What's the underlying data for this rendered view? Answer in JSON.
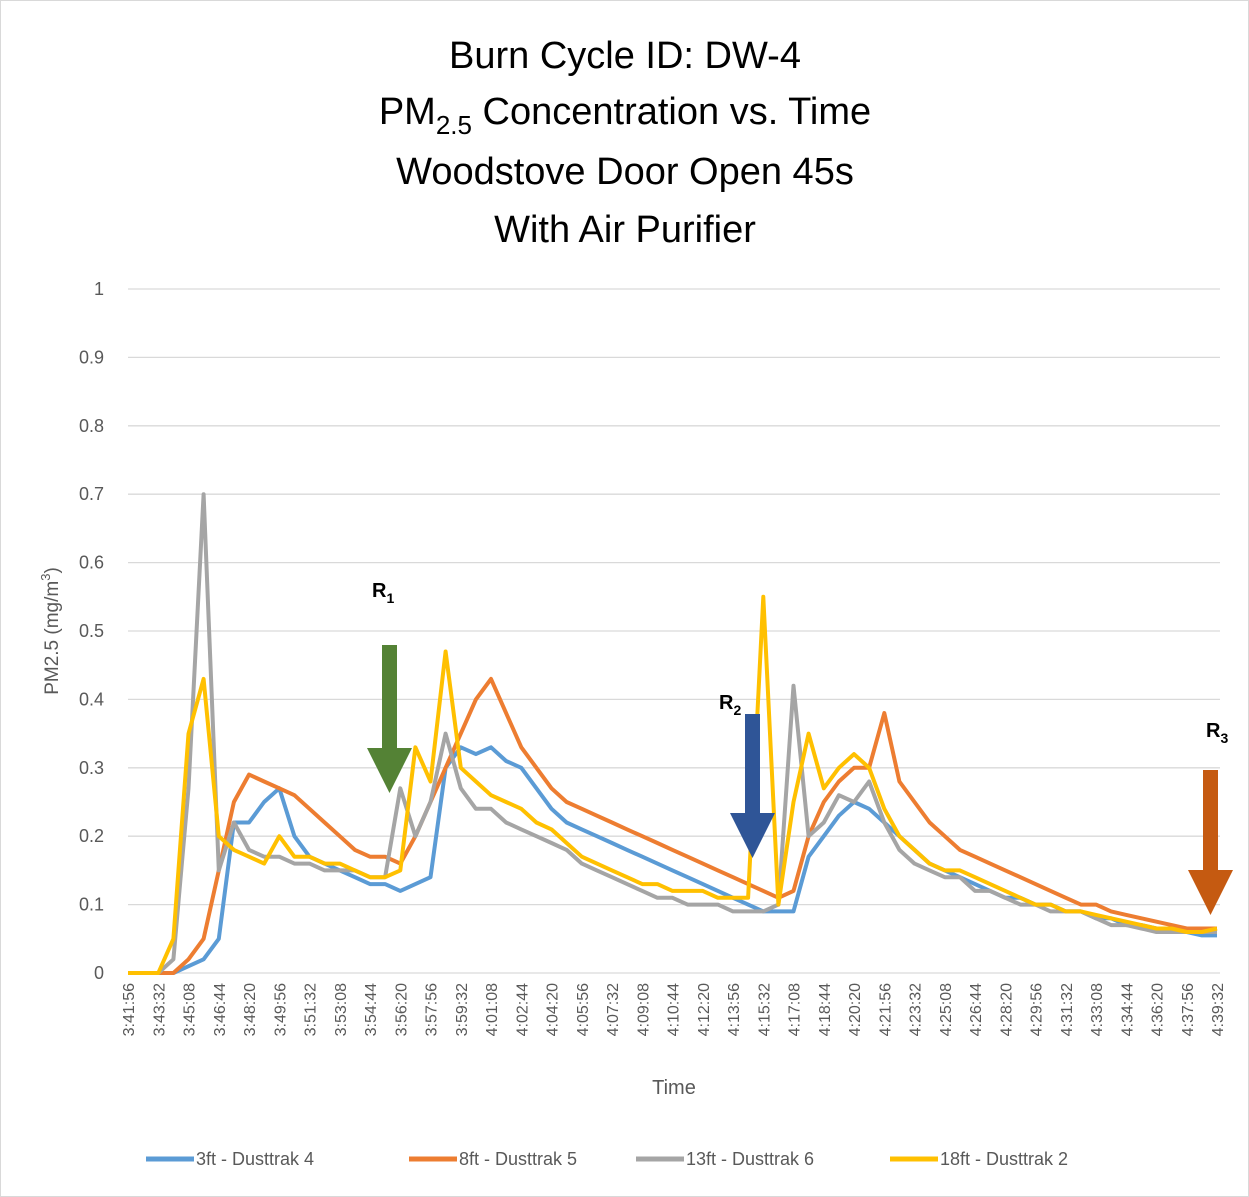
{
  "chart_data": {
    "type": "line",
    "title_lines": [
      "Burn Cycle ID: DW-4",
      [
        "PM",
        "2.5",
        " Concentration vs. Time"
      ],
      "Woodstove Door Open 45s",
      "With Air Purifier"
    ],
    "x_label": "Time",
    "y_label": [
      "PM2.5 (mg/m",
      "3",
      ")"
    ],
    "annotations": [
      {
        "label": "R",
        "subscript": "1"
      },
      {
        "label": "R",
        "subscript": "2"
      },
      {
        "label": "R",
        "subscript": "3"
      }
    ],
    "categories": [
      "3:41:56",
      null,
      "3:43:32",
      null,
      "3:45:08",
      null,
      "3:46:44",
      null,
      "3:48:20",
      null,
      "3:49:56",
      null,
      "3:51:32",
      null,
      "3:53:08",
      null,
      "3:54:44",
      null,
      "3:56:20",
      null,
      "3:57:56",
      null,
      "3:59:32",
      null,
      "4:01:08",
      null,
      "4:02:44",
      null,
      "4:04:20",
      null,
      "4:05:56",
      null,
      "4:07:32",
      null,
      "4:09:08",
      null,
      "4:10:44",
      null,
      "4:12:20",
      null,
      "4:13:56",
      null,
      "4:15:32",
      null,
      "4:17:08",
      null,
      "4:18:44",
      null,
      "4:20:20",
      null,
      "4:21:56",
      null,
      "4:23:32",
      null,
      "4:25:08",
      null,
      "4:26:44",
      null,
      "4:28:20",
      null,
      "4:29:56",
      null,
      "4:31:32",
      null,
      "4:33:08",
      null,
      "4:34:44",
      null,
      "4:36:20",
      null,
      "4:37:56",
      null,
      "4:39:32"
    ],
    "series": [
      {
        "name": "3ft - Dusttrak 4",
        "color": "#5b9bd5",
        "values": [
          0,
          0,
          0,
          0,
          0.01,
          0.02,
          0.05,
          0.22,
          0.22,
          0.25,
          0.27,
          0.2,
          0.17,
          0.16,
          0.15,
          0.14,
          0.13,
          0.13,
          0.12,
          0.13,
          0.14,
          0.3,
          0.33,
          0.32,
          0.33,
          0.31,
          0.3,
          0.27,
          0.24,
          0.22,
          0.21,
          0.2,
          0.19,
          0.18,
          0.17,
          0.16,
          0.15,
          0.14,
          0.13,
          0.12,
          0.11,
          0.1,
          0.09,
          0.09,
          0.09,
          0.17,
          0.2,
          0.23,
          0.25,
          0.24,
          0.22,
          0.2,
          0.18,
          0.16,
          0.15,
          0.14,
          0.13,
          0.12,
          0.11,
          0.11,
          0.1,
          0.1,
          0.09,
          0.09,
          0.08,
          0.08,
          0.07,
          0.07,
          0.065,
          0.06,
          0.06,
          0.055,
          0.055
        ]
      },
      {
        "name": "8ft - Dusttrak 5",
        "color": "#ed7d31",
        "values": [
          0,
          0,
          0,
          0,
          0.02,
          0.05,
          0.15,
          0.25,
          0.29,
          0.28,
          0.27,
          0.26,
          0.24,
          0.22,
          0.2,
          0.18,
          0.17,
          0.17,
          0.16,
          0.2,
          0.25,
          0.3,
          0.35,
          0.4,
          0.43,
          0.38,
          0.33,
          0.3,
          0.27,
          0.25,
          0.24,
          0.23,
          0.22,
          0.21,
          0.2,
          0.19,
          0.18,
          0.17,
          0.16,
          0.15,
          0.14,
          0.13,
          0.12,
          0.11,
          0.12,
          0.2,
          0.25,
          0.28,
          0.3,
          0.3,
          0.38,
          0.28,
          0.25,
          0.22,
          0.2,
          0.18,
          0.17,
          0.16,
          0.15,
          0.14,
          0.13,
          0.12,
          0.11,
          0.1,
          0.1,
          0.09,
          0.085,
          0.08,
          0.075,
          0.07,
          0.065,
          0.065,
          0.065
        ]
      },
      {
        "name": "13ft - Dusttrak 6",
        "color": "#a5a5a5",
        "values": [
          0,
          0,
          0,
          0.02,
          0.27,
          0.7,
          0.15,
          0.22,
          0.18,
          0.17,
          0.17,
          0.16,
          0.16,
          0.15,
          0.15,
          0.15,
          0.14,
          0.14,
          0.27,
          0.2,
          0.25,
          0.35,
          0.27,
          0.24,
          0.24,
          0.22,
          0.21,
          0.2,
          0.19,
          0.18,
          0.16,
          0.15,
          0.14,
          0.13,
          0.12,
          0.11,
          0.11,
          0.1,
          0.1,
          0.1,
          0.09,
          0.09,
          0.09,
          0.1,
          0.42,
          0.2,
          0.22,
          0.26,
          0.25,
          0.28,
          0.22,
          0.18,
          0.16,
          0.15,
          0.14,
          0.14,
          0.12,
          0.12,
          0.11,
          0.1,
          0.1,
          0.09,
          0.09,
          0.09,
          0.08,
          0.07,
          0.07,
          0.065,
          0.06,
          0.06,
          0.06,
          0.06,
          0.06
        ]
      },
      {
        "name": "18ft - Dusttrak 2",
        "color": "#ffc000",
        "values": [
          0,
          0,
          0,
          0.05,
          0.35,
          0.43,
          0.2,
          0.18,
          0.17,
          0.16,
          0.2,
          0.17,
          0.17,
          0.16,
          0.16,
          0.15,
          0.14,
          0.14,
          0.15,
          0.33,
          0.28,
          0.47,
          0.3,
          0.28,
          0.26,
          0.25,
          0.24,
          0.22,
          0.21,
          0.19,
          0.17,
          0.16,
          0.15,
          0.14,
          0.13,
          0.13,
          0.12,
          0.12,
          0.12,
          0.11,
          0.11,
          0.11,
          0.55,
          0.1,
          0.25,
          0.35,
          0.27,
          0.3,
          0.32,
          0.3,
          0.24,
          0.2,
          0.18,
          0.16,
          0.15,
          0.15,
          0.14,
          0.13,
          0.12,
          0.11,
          0.1,
          0.1,
          0.09,
          0.09,
          0.085,
          0.08,
          0.075,
          0.07,
          0.065,
          0.065,
          0.06,
          0.06,
          0.065
        ]
      }
    ],
    "ylim": [
      0,
      1
    ],
    "yticks": [
      0,
      0.1,
      0.2,
      0.3,
      0.4,
      0.5,
      0.6,
      0.7,
      0.8,
      0.9,
      1
    ],
    "grid": true,
    "legend": "bottom"
  }
}
